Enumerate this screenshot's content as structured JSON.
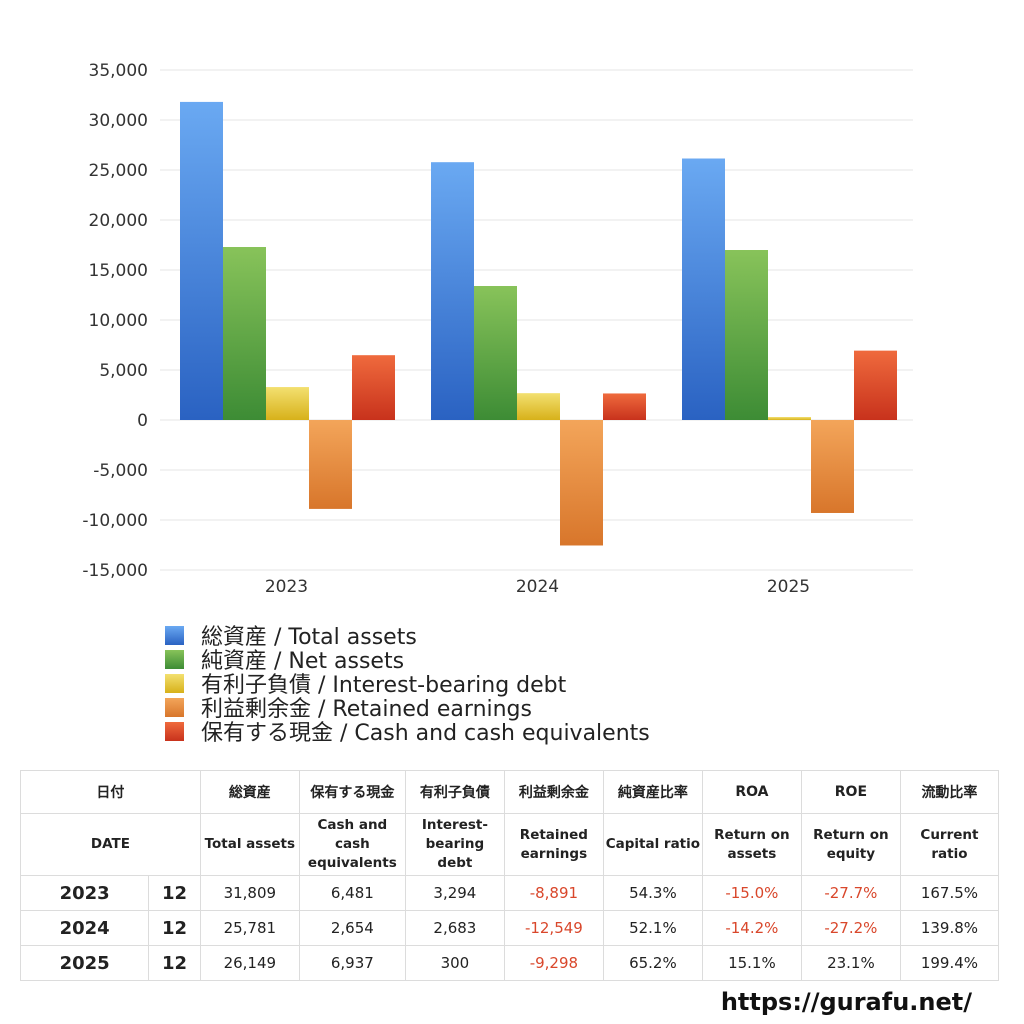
{
  "chart_data": {
    "type": "bar",
    "categories": [
      "2023",
      "2024",
      "2025"
    ],
    "ylim": [
      -15000,
      35000
    ],
    "yticks": [
      "35,000",
      "30,000",
      "25,000",
      "20,000",
      "15,000",
      "10,000",
      "5,000",
      "0",
      "-5,000",
      "-10,000",
      "-15,000"
    ],
    "ytick_values": [
      35000,
      30000,
      25000,
      20000,
      15000,
      10000,
      5000,
      0,
      -5000,
      -10000,
      -15000
    ],
    "grid": true,
    "legend_position": "bottom",
    "series": [
      {
        "name": "総資産 / Total assets",
        "values": [
          31809,
          25781,
          26149
        ],
        "color_top": "#6aa9f2",
        "color_bottom": "#2a62c2"
      },
      {
        "name": "純資産 / Net assets",
        "values": [
          17300,
          13400,
          17000
        ],
        "color_top": "#88c35a",
        "color_bottom": "#3d8c35"
      },
      {
        "name": "有利子負債 / Interest-bearing debt",
        "values": [
          3294,
          2683,
          300
        ],
        "color_top": "#f3e070",
        "color_bottom": "#d7b11a"
      },
      {
        "name": "利益剰余金 / Retained earnings",
        "values": [
          -8891,
          -12549,
          -9298
        ],
        "color_top": "#f3a55a",
        "color_bottom": "#d8762b"
      },
      {
        "name": "保有する現金 /  Cash and cash equivalents",
        "values": [
          6481,
          2654,
          6937
        ],
        "color_top": "#ef6a3d",
        "color_bottom": "#c8321c"
      }
    ]
  },
  "table": {
    "header_jp": [
      "日付",
      "総資産",
      "保有する現金",
      "有利子負債",
      "利益剰余金",
      "純資産比率",
      "ROA",
      "ROE",
      "流動比率"
    ],
    "header_en": [
      "DATE",
      "Total assets",
      "Cash and cash equivalents",
      "Interest-bearing debt",
      "Retained earnings",
      "Capital ratio",
      "Return on assets",
      "Return on equity",
      "Current ratio"
    ],
    "rows": [
      {
        "year": "2023",
        "month": "12",
        "cells": [
          "31,809",
          "6,481",
          "3,294",
          "-8,891",
          "54.3%",
          "-15.0%",
          "-27.7%",
          "167.5%"
        ]
      },
      {
        "year": "2024",
        "month": "12",
        "cells": [
          "25,781",
          "2,654",
          "2,683",
          "-12,549",
          "52.1%",
          "-14.2%",
          "-27.2%",
          "139.8%"
        ]
      },
      {
        "year": "2025",
        "month": "12",
        "cells": [
          "26,149",
          "6,937",
          "300",
          "-9,298",
          "65.2%",
          "15.1%",
          "23.1%",
          "199.4%"
        ]
      }
    ]
  },
  "colors": {
    "negative_text": "#d9472b"
  },
  "footer": {
    "url": "https://gurafu.net/"
  }
}
